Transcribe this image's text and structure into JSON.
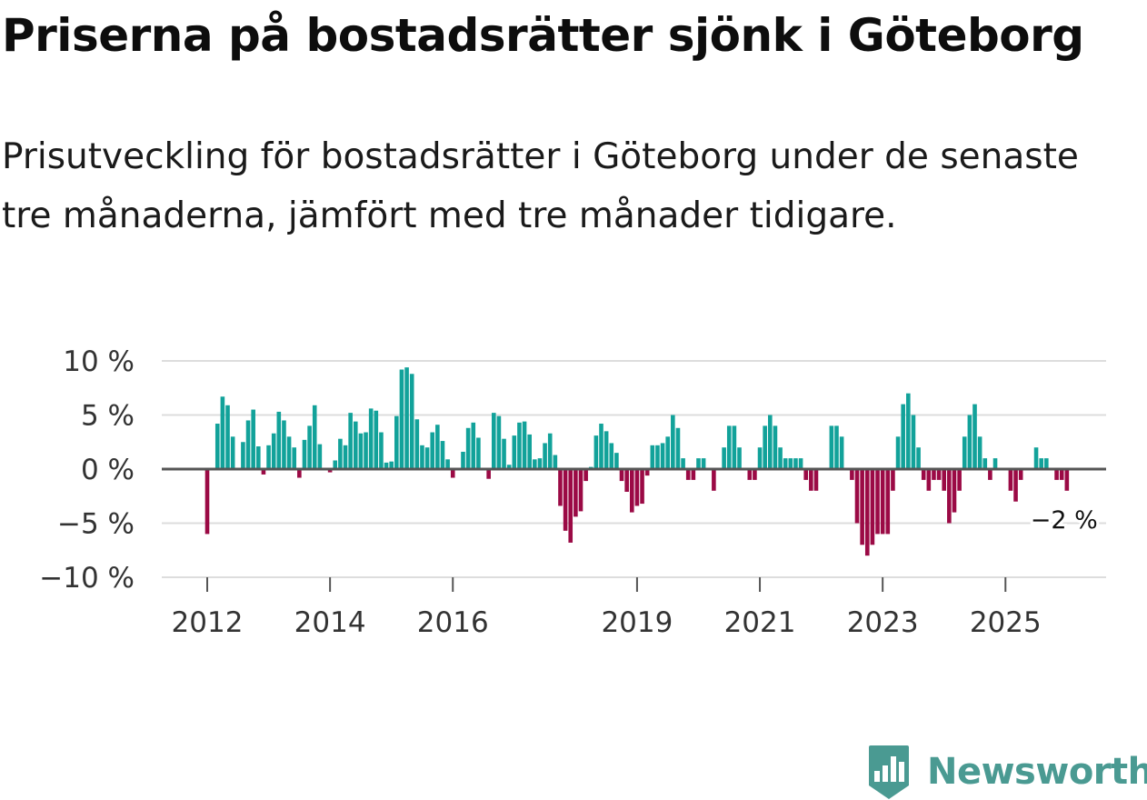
{
  "title": "Priserna på bostadsrätter sjönk i Göteborg",
  "subtitle": "Prisutveckling för bostadsrätter i Göteborg under de senaste tre månaderna, jämfört med tre månader tidigare.",
  "brand": "Newsworthy",
  "colors": {
    "positive": "#12a29a",
    "negative": "#9b0a45",
    "grid": "#dddddd",
    "zero": "#555555",
    "brand": "#4a9a92"
  },
  "chart_data": {
    "type": "bar",
    "start": "2012-01",
    "frequency": "monthly",
    "ylim": [
      -10,
      10
    ],
    "yticks": [
      {
        "value": 10,
        "label": "10 %"
      },
      {
        "value": 5,
        "label": "5 %"
      },
      {
        "value": 0,
        "label": "0 %"
      },
      {
        "value": -5,
        "label": "−5 %"
      },
      {
        "value": -10,
        "label": "−10 %"
      }
    ],
    "xticks": [
      {
        "index": 0,
        "label": "2012"
      },
      {
        "index": 24,
        "label": "2014"
      },
      {
        "index": 48,
        "label": "2016"
      },
      {
        "index": 84,
        "label": "2019"
      },
      {
        "index": 108,
        "label": "2021"
      },
      {
        "index": 132,
        "label": "2023"
      },
      {
        "index": 156,
        "label": "2025"
      }
    ],
    "values": [
      -6,
      0,
      4.2,
      6.7,
      5.9,
      3,
      0,
      2.5,
      4.5,
      5.5,
      2.1,
      -0.5,
      2.2,
      3.3,
      5.3,
      4.5,
      3,
      2,
      -0.8,
      2.7,
      4,
      5.9,
      2.3,
      0,
      -0.3,
      0.8,
      2.8,
      2.2,
      5.2,
      4.4,
      3.3,
      3.4,
      5.6,
      5.4,
      3.4,
      0.6,
      0.7,
      4.9,
      9.2,
      9.4,
      8.8,
      4.6,
      2.2,
      2,
      3.4,
      4.1,
      2.6,
      0.9,
      -0.8,
      0,
      1.6,
      3.8,
      4.3,
      2.9,
      0,
      -0.9,
      5.2,
      4.9,
      2.8,
      0.4,
      3.1,
      4.3,
      4.4,
      3.2,
      0.9,
      1,
      2.4,
      3.3,
      1.3,
      -3.4,
      -5.7,
      -6.8,
      -4.4,
      -3.9,
      -1.1,
      0.2,
      3.1,
      4.2,
      3.5,
      2.4,
      1.5,
      -1.1,
      -2.1,
      -4,
      -3.4,
      -3.2,
      -0.6,
      2.2,
      2.2,
      2.4,
      3,
      5,
      3.8,
      1,
      -1,
      -1,
      1,
      1,
      0,
      -2,
      0,
      2,
      4,
      4,
      2,
      0,
      -1,
      -1,
      2,
      4,
      5,
      4,
      2,
      1,
      1,
      1,
      1,
      -1,
      -2,
      -2,
      0,
      0,
      4,
      4,
      3,
      0,
      -1,
      -5,
      -7,
      -8,
      -7,
      -6,
      -6,
      -6,
      -2,
      3,
      6,
      7,
      5,
      2,
      -1,
      -2,
      -1,
      -1,
      -2,
      -5,
      -4,
      -2,
      3,
      5,
      6,
      3,
      1,
      -1,
      1,
      0,
      0,
      -2,
      -3,
      -1,
      0,
      0,
      2,
      1,
      1,
      0,
      -1,
      -1,
      -2
    ],
    "last_value_label": "−2 %"
  }
}
